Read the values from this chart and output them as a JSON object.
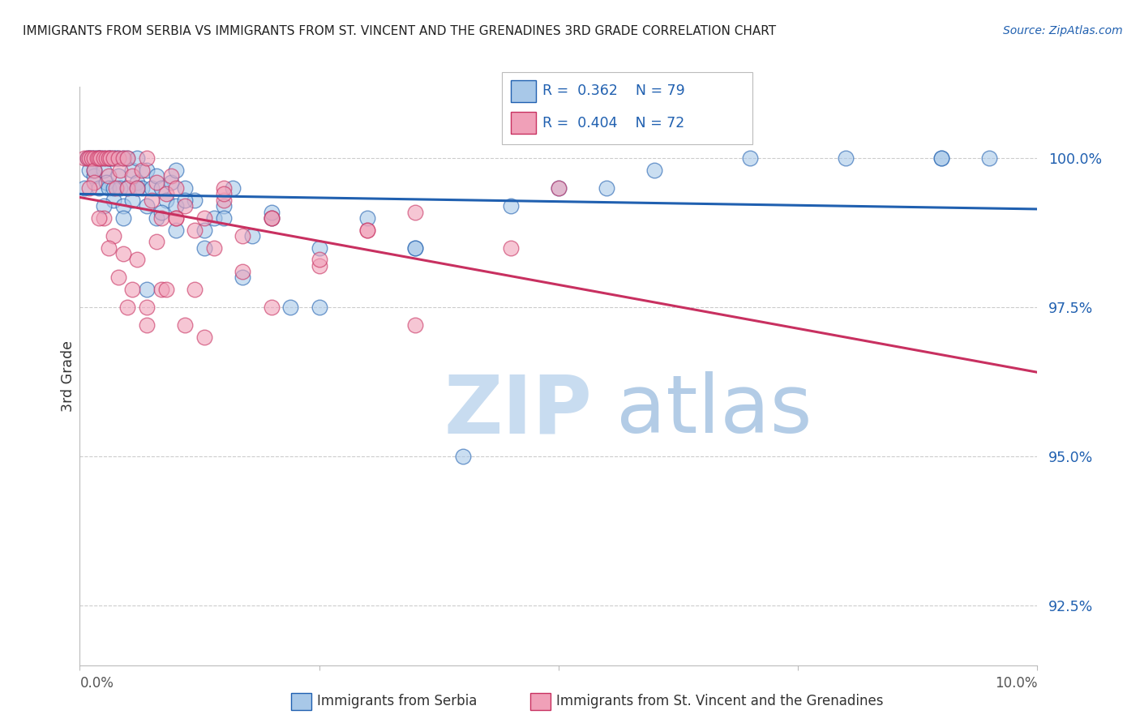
{
  "title": "IMMIGRANTS FROM SERBIA VS IMMIGRANTS FROM ST. VINCENT AND THE GRENADINES 3RD GRADE CORRELATION CHART",
  "source": "Source: ZipAtlas.com",
  "ylabel": "3rd Grade",
  "y_ticks": [
    92.5,
    95.0,
    97.5,
    100.0
  ],
  "y_tick_labels": [
    "92.5%",
    "95.0%",
    "97.5%",
    "100.0%"
  ],
  "xlim": [
    0.0,
    10.0
  ],
  "ylim": [
    91.5,
    101.2
  ],
  "legend_serbia_R": "0.362",
  "legend_serbia_N": "79",
  "legend_svg_R": "0.404",
  "legend_svg_N": "72",
  "color_serbia": "#A8C8E8",
  "color_svgr": "#F0A0B8",
  "color_serbia_line": "#2060B0",
  "color_svgr_line": "#C83060",
  "serbia_x": [
    0.05,
    0.08,
    0.1,
    0.1,
    0.12,
    0.15,
    0.15,
    0.18,
    0.2,
    0.2,
    0.22,
    0.25,
    0.25,
    0.28,
    0.3,
    0.3,
    0.32,
    0.35,
    0.35,
    0.38,
    0.4,
    0.4,
    0.42,
    0.45,
    0.45,
    0.5,
    0.5,
    0.55,
    0.55,
    0.6,
    0.6,
    0.65,
    0.7,
    0.7,
    0.75,
    0.8,
    0.8,
    0.85,
    0.9,
    0.95,
    1.0,
    1.0,
    1.1,
    1.2,
    1.3,
    1.4,
    1.5,
    1.6,
    1.8,
    2.0,
    2.2,
    2.5,
    3.0,
    3.5,
    4.0,
    4.5,
    5.5,
    6.0,
    8.0,
    9.0,
    9.5,
    0.15,
    0.25,
    0.35,
    0.45,
    0.6,
    0.7,
    0.85,
    1.0,
    1.1,
    1.3,
    1.5,
    1.7,
    2.0,
    2.5,
    3.5,
    5.0,
    7.0,
    9.0
  ],
  "serbia_y": [
    99.5,
    100.0,
    100.0,
    99.8,
    100.0,
    100.0,
    99.7,
    100.0,
    100.0,
    99.5,
    100.0,
    100.0,
    99.8,
    99.6,
    100.0,
    99.5,
    100.0,
    100.0,
    99.3,
    100.0,
    100.0,
    99.7,
    99.5,
    100.0,
    99.2,
    100.0,
    99.5,
    99.8,
    99.3,
    100.0,
    99.6,
    99.5,
    99.8,
    99.2,
    99.5,
    99.7,
    99.0,
    99.5,
    99.3,
    99.6,
    99.8,
    99.2,
    99.5,
    99.3,
    98.8,
    99.0,
    99.2,
    99.5,
    98.7,
    99.0,
    97.5,
    98.5,
    99.0,
    98.5,
    95.0,
    99.2,
    99.5,
    99.8,
    100.0,
    100.0,
    100.0,
    99.8,
    99.2,
    99.5,
    99.0,
    99.5,
    97.8,
    99.1,
    98.8,
    99.3,
    98.5,
    99.0,
    98.0,
    99.1,
    97.5,
    98.5,
    99.5,
    100.0,
    100.0
  ],
  "svgr_x": [
    0.05,
    0.08,
    0.1,
    0.12,
    0.15,
    0.15,
    0.18,
    0.2,
    0.22,
    0.25,
    0.28,
    0.3,
    0.3,
    0.32,
    0.35,
    0.38,
    0.4,
    0.42,
    0.45,
    0.5,
    0.5,
    0.55,
    0.6,
    0.65,
    0.7,
    0.75,
    0.8,
    0.85,
    0.9,
    0.95,
    1.0,
    1.1,
    1.2,
    1.3,
    1.4,
    1.5,
    1.7,
    2.0,
    2.5,
    3.0,
    3.5,
    4.5,
    0.15,
    0.25,
    0.35,
    0.45,
    0.55,
    0.7,
    0.85,
    1.0,
    1.1,
    1.3,
    1.5,
    1.7,
    2.0,
    2.5,
    3.5,
    5.0,
    0.1,
    0.2,
    0.3,
    0.4,
    0.5,
    0.6,
    0.7,
    0.8,
    0.9,
    1.0,
    1.2,
    1.5,
    2.0,
    3.0
  ],
  "svgr_y": [
    100.0,
    100.0,
    100.0,
    100.0,
    100.0,
    99.8,
    100.0,
    100.0,
    100.0,
    100.0,
    100.0,
    100.0,
    99.7,
    100.0,
    100.0,
    99.5,
    100.0,
    99.8,
    100.0,
    100.0,
    99.5,
    99.7,
    99.5,
    99.8,
    100.0,
    99.3,
    99.6,
    99.0,
    99.4,
    99.7,
    99.5,
    99.2,
    98.8,
    99.0,
    98.5,
    99.3,
    98.7,
    99.0,
    98.2,
    98.8,
    99.1,
    98.5,
    99.6,
    99.0,
    98.7,
    98.4,
    97.8,
    97.5,
    97.8,
    99.0,
    97.2,
    97.0,
    99.5,
    98.1,
    97.5,
    98.3,
    97.2,
    99.5,
    99.5,
    99.0,
    98.5,
    98.0,
    97.5,
    98.3,
    97.2,
    98.6,
    97.8,
    99.0,
    97.8,
    99.4,
    99.0,
    98.8
  ]
}
